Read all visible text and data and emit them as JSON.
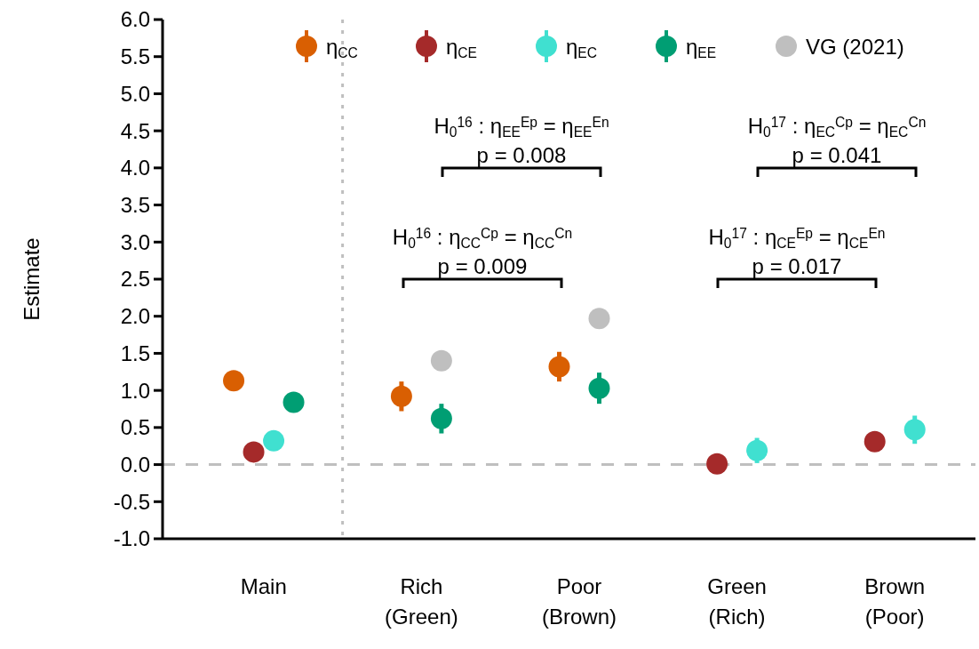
{
  "chart_data": {
    "type": "scatter",
    "ylabel": "Estimate",
    "categories": [
      "Main",
      "Rich (Green)",
      "Poor (Brown)",
      "Green (Rich)",
      "Brown (Poor)"
    ],
    "series": [
      {
        "name": "η$_{CC}$",
        "color": "#d95f02",
        "values": [
          1.13,
          0.92,
          1.32,
          null,
          null
        ],
        "errors": [
          null,
          0.2,
          0.2,
          null,
          null
        ]
      },
      {
        "name": "η$_{CE}$",
        "color": "#a52a2a",
        "values": [
          0.17,
          null,
          null,
          0.01,
          0.31
        ],
        "errors": [
          null,
          null,
          null,
          null,
          null
        ]
      },
      {
        "name": "η$_{EC}$",
        "color": "#40e0d0",
        "values": [
          0.32,
          null,
          null,
          0.19,
          0.47
        ],
        "errors": [
          null,
          null,
          null,
          0.17,
          0.19
        ]
      },
      {
        "name": "η$_{EE}$",
        "color": "#009e73",
        "values": [
          0.84,
          0.62,
          1.03,
          null,
          null
        ],
        "errors": [
          null,
          0.2,
          0.21,
          null,
          null
        ]
      },
      {
        "name": "VG (2021)",
        "color": "#bfbfbf",
        "values": [
          null,
          1.4,
          1.97,
          null,
          null
        ]
      }
    ],
    "ylim": [
      -1,
      6
    ],
    "yticks": [
      {
        "value": -1,
        "label": "-1.0"
      },
      {
        "value": -0.5,
        "label": "-0.5"
      },
      {
        "value": 0,
        "label": "0.0"
      },
      {
        "value": 0.5,
        "label": "0.5"
      },
      {
        "value": 1,
        "label": "1.0"
      },
      {
        "value": 1.5,
        "label": "1.5"
      },
      {
        "value": 2,
        "label": "2.0"
      },
      {
        "value": 2.5,
        "label": "2.5"
      },
      {
        "value": 3,
        "label": "3.0"
      },
      {
        "value": 3.5,
        "label": "3.5"
      },
      {
        "value": 4,
        "label": "4.0"
      },
      {
        "value": 4.5,
        "label": "4.5"
      },
      {
        "value": 5,
        "label": "5.0"
      },
      {
        "value": 5.5,
        "label": "5.5"
      },
      {
        "value": 6,
        "label": "6.0"
      }
    ],
    "ref_lines": [
      {
        "axis": "y",
        "value": 0,
        "color": "#bfbfbf",
        "line_style": "dashed"
      }
    ],
    "annotations": [
      "H$_{0}$$^{16}$ : η$_{EE}$$^{Ep}$ = η$_{EE}$$^{En}$",
      "p = 0.008",
      "H$_{0}$$^{17}$ : η$_{EC}$$^{Cp}$ = η$_{EC}$$^{Cn}$",
      "p = 0.041",
      "H$_{0}$$^{16}$ : η$_{CC}$$^{Cp}$ = η$_{CC}$$^{Cn}$",
      "p = 0.009",
      "H$_{0}$$^{17}$ : η$_{CE}$$^{Ep}$ = η$_{CE}$$^{En}$",
      "p = 0.017"
    ],
    "legend": "top",
    "marker": "circle",
    "grid": false
  }
}
